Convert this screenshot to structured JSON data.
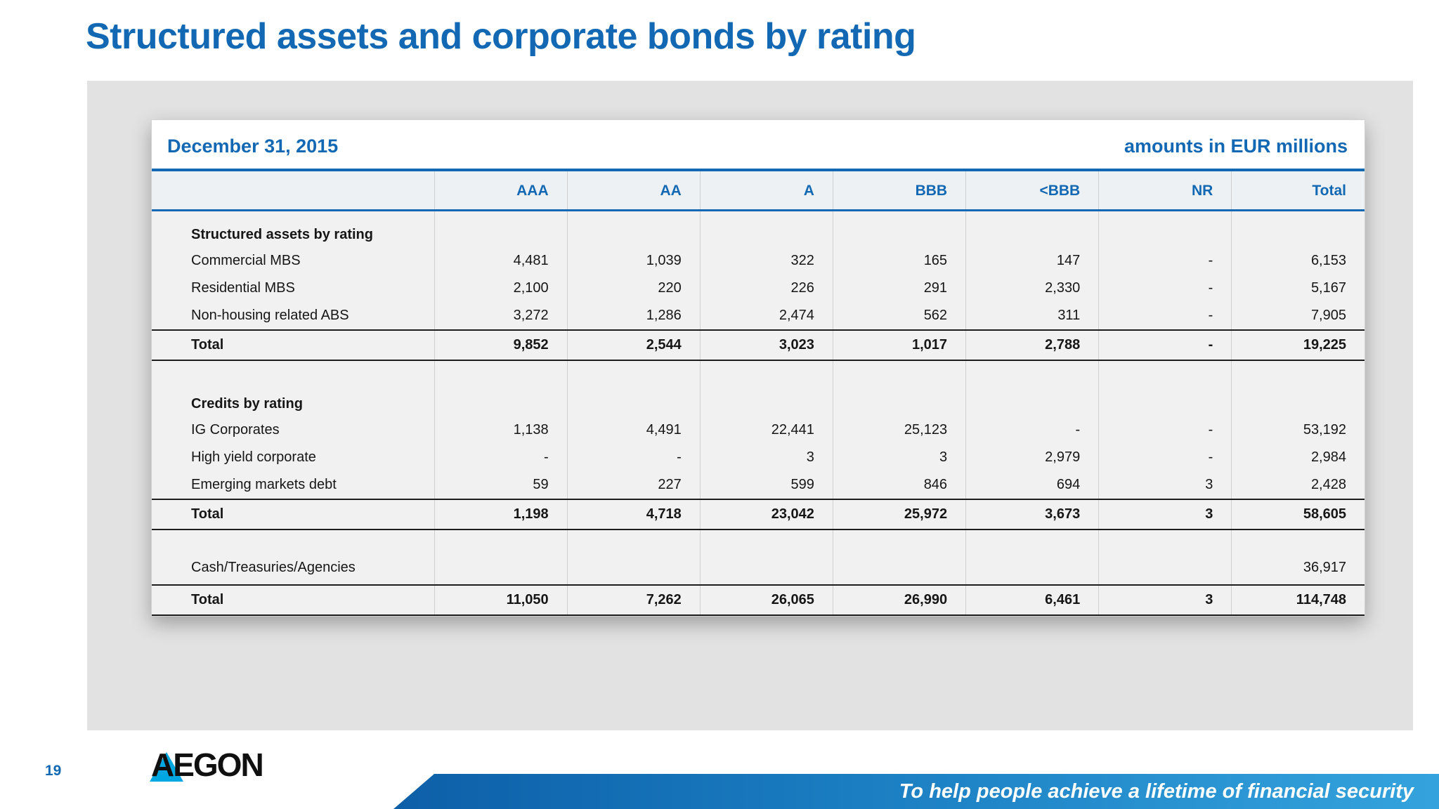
{
  "slide": {
    "title": "Structured assets and corporate bonds by rating",
    "page_number": "19",
    "logo_text": "AEGON",
    "footer_tagline": "To help people achieve a lifetime of financial security"
  },
  "colors": {
    "accent_blue": "#1268b3",
    "logo_triangle_blue": "#00a7e1",
    "panel_gray": "#e2e2e2",
    "footer_bar_gradient": [
      "#0d5fa8",
      "#34a3dd"
    ]
  },
  "table": {
    "date_label": "December 31, 2015",
    "units_label": "amounts in EUR millions",
    "columns": [
      "",
      "AAA",
      "AA",
      "A",
      "BBB",
      "<BBB",
      "NR",
      "Total"
    ],
    "sections": [
      {
        "header": "Structured assets by rating",
        "rows": [
          {
            "label": "Commercial MBS",
            "values": [
              "4,481",
              "1,039",
              "322",
              "165",
              "147",
              "-",
              "6,153"
            ]
          },
          {
            "label": "Residential MBS",
            "values": [
              "2,100",
              "220",
              "226",
              "291",
              "2,330",
              "-",
              "5,167"
            ]
          },
          {
            "label": "Non-housing related ABS",
            "values": [
              "3,272",
              "1,286",
              "2,474",
              "562",
              "311",
              "-",
              "7,905"
            ]
          }
        ],
        "total": {
          "label": "Total",
          "values": [
            "9,852",
            "2,544",
            "3,023",
            "1,017",
            "2,788",
            "-",
            "19,225"
          ]
        }
      },
      {
        "header": "Credits by rating",
        "rows": [
          {
            "label": "IG Corporates",
            "values": [
              "1,138",
              "4,491",
              "22,441",
              "25,123",
              "-",
              "-",
              "53,192"
            ]
          },
          {
            "label": "High yield corporate",
            "values": [
              "-",
              "-",
              "3",
              "3",
              "2,979",
              "-",
              "2,984"
            ]
          },
          {
            "label": "Emerging markets debt",
            "values": [
              "59",
              "227",
              "599",
              "846",
              "694",
              "3",
              "2,428"
            ]
          }
        ],
        "total": {
          "label": "Total",
          "values": [
            "1,198",
            "4,718",
            "23,042",
            "25,972",
            "3,673",
            "3",
            "58,605"
          ]
        }
      },
      {
        "header": null,
        "rows": [
          {
            "label": "Cash/Treasuries/Agencies",
            "values": [
              "",
              "",
              "",
              "",
              "",
              "",
              "36,917"
            ]
          }
        ],
        "total": {
          "label": "Total",
          "values": [
            "11,050",
            "7,262",
            "26,065",
            "26,990",
            "6,461",
            "3",
            "114,748"
          ]
        }
      }
    ]
  }
}
